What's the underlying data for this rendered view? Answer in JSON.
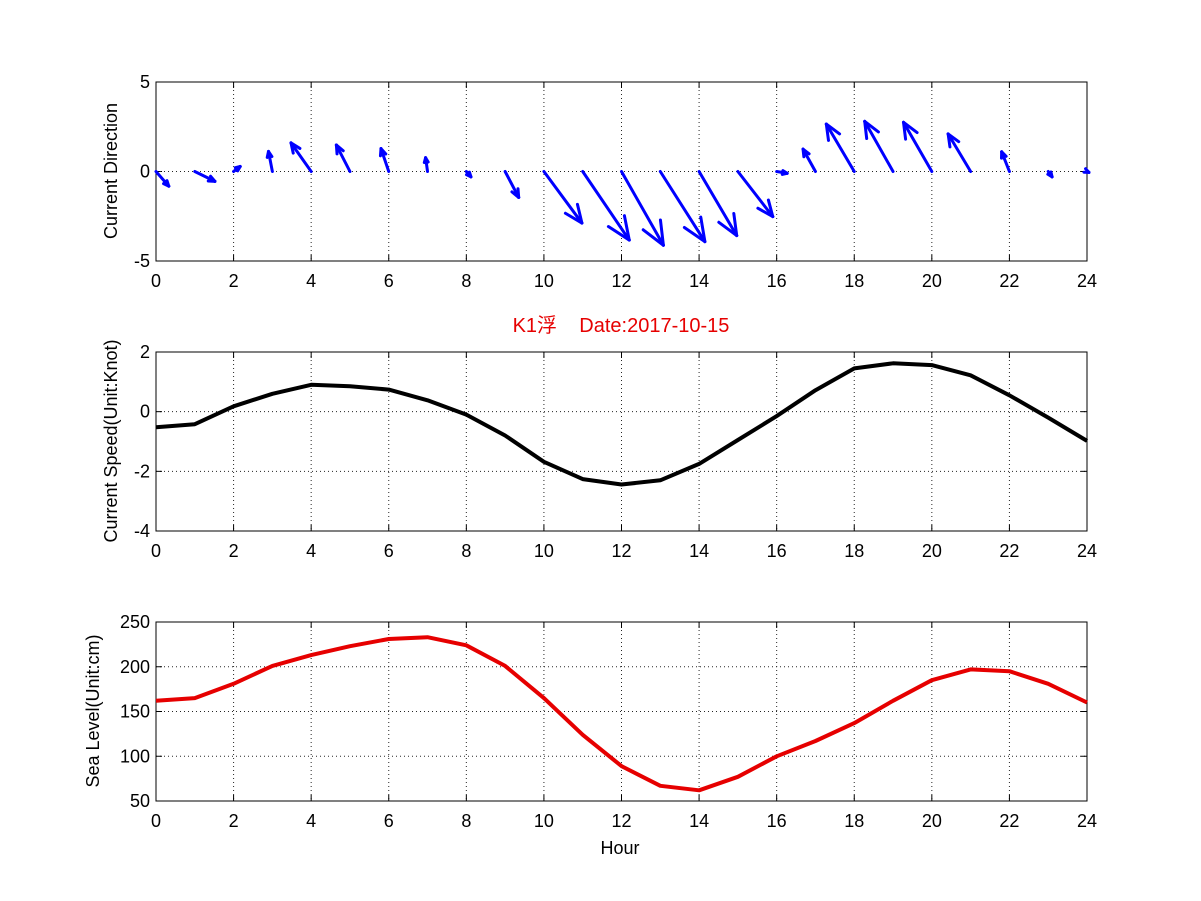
{
  "title": "K1浮    Date:2017-10-15",
  "colors": {
    "title": "#e60000",
    "quiver": "#0000ff",
    "speed": "#000000",
    "sea_level": "#e60000"
  },
  "chart_data": [
    {
      "id": "direction",
      "type": "quiver",
      "ylabel": "Current Direction",
      "xlim": [
        0,
        24
      ],
      "ylim": [
        -5,
        5
      ],
      "xticks": [
        0,
        2,
        4,
        6,
        8,
        10,
        12,
        14,
        16,
        18,
        20,
        22,
        24
      ],
      "yticks": [
        -5,
        0,
        5
      ],
      "grid": "x",
      "x": [
        0,
        1,
        2,
        3,
        4,
        5,
        6,
        7,
        8,
        9,
        10,
        11,
        12,
        13,
        14,
        15,
        16,
        17,
        18,
        19,
        20,
        21,
        22,
        23,
        24
      ],
      "u": [
        0.33,
        0.52,
        0.17,
        -0.1,
        -0.52,
        -0.35,
        -0.2,
        -0.05,
        0.12,
        0.35,
        0.98,
        1.2,
        1.08,
        1.15,
        0.97,
        0.9,
        0.27,
        -0.32,
        -0.72,
        -0.73,
        -0.73,
        -0.58,
        -0.2,
        0.1,
        0.05
      ],
      "v": [
        -0.82,
        -0.55,
        0.28,
        1.12,
        1.6,
        1.48,
        1.28,
        0.77,
        -0.3,
        -1.45,
        -2.88,
        -3.83,
        -4.12,
        -3.92,
        -3.58,
        -2.52,
        -0.1,
        1.25,
        2.65,
        2.8,
        2.75,
        2.1,
        1.1,
        -0.3,
        -0.05
      ]
    },
    {
      "id": "speed",
      "type": "line",
      "ylabel": "Current Speed(Unit:Knot)",
      "xlim": [
        0,
        24
      ],
      "ylim": [
        -4,
        2
      ],
      "xticks": [
        0,
        2,
        4,
        6,
        8,
        10,
        12,
        14,
        16,
        18,
        20,
        22,
        24
      ],
      "yticks": [
        -4,
        -2,
        0,
        2
      ],
      "grid": "xy",
      "x": [
        0,
        1,
        2,
        3,
        4,
        5,
        6,
        7,
        8,
        9,
        10,
        11,
        12,
        13,
        14,
        15,
        16,
        17,
        18,
        19,
        20,
        21,
        22,
        23,
        24
      ],
      "y": [
        -0.52,
        -0.42,
        0.18,
        0.6,
        0.9,
        0.85,
        0.74,
        0.38,
        -0.1,
        -0.8,
        -1.68,
        -2.26,
        -2.44,
        -2.3,
        -1.75,
        -0.95,
        -0.15,
        0.72,
        1.45,
        1.62,
        1.56,
        1.22,
        0.55,
        -0.2,
        -0.98
      ]
    },
    {
      "id": "sea_level",
      "type": "line",
      "ylabel": "Sea Level(Unit:cm)",
      "xlabel": "Hour",
      "xlim": [
        0,
        24
      ],
      "ylim": [
        50,
        250
      ],
      "xticks": [
        0,
        2,
        4,
        6,
        8,
        10,
        12,
        14,
        16,
        18,
        20,
        22,
        24
      ],
      "yticks": [
        50,
        100,
        150,
        200,
        250
      ],
      "grid": "xy",
      "x": [
        0,
        1,
        2,
        3,
        4,
        5,
        6,
        7,
        8,
        9,
        10,
        11,
        12,
        13,
        14,
        15,
        16,
        17,
        18,
        19,
        20,
        21,
        22,
        23,
        24
      ],
      "y": [
        162,
        165,
        181,
        201,
        213,
        223,
        231,
        233,
        224,
        201,
        165,
        124,
        89,
        67,
        62,
        77,
        100,
        117,
        137,
        162,
        185,
        197,
        195,
        181,
        160
      ]
    }
  ]
}
